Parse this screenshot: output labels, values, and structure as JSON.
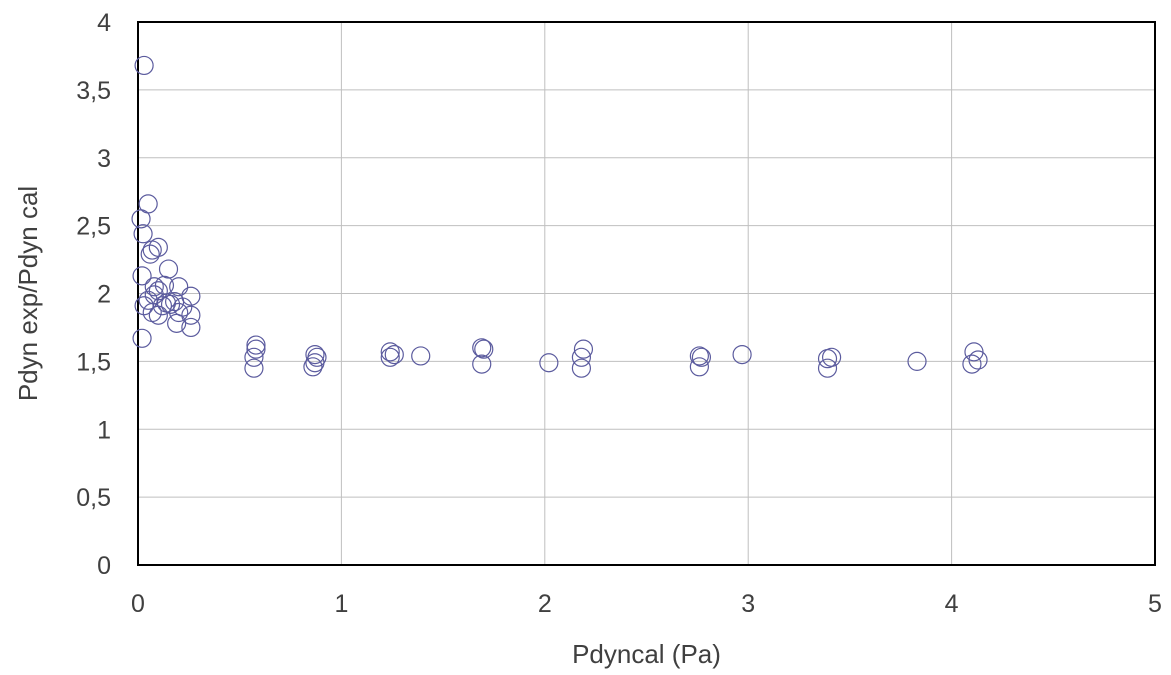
{
  "chart_data": {
    "type": "scatter",
    "title": "",
    "xlabel": "Pdyncal (Pa)",
    "ylabel": "Pdyn exp/Pdyn cal",
    "xlim": [
      0,
      5
    ],
    "ylim": [
      0,
      4
    ],
    "x_ticks": [
      0,
      1,
      2,
      3,
      4,
      5
    ],
    "x_tick_labels": [
      "0",
      "1",
      "2",
      "3",
      "4",
      "5"
    ],
    "y_ticks": [
      0,
      0.5,
      1,
      1.5,
      2,
      2.5,
      3,
      3.5,
      4
    ],
    "y_tick_labels": [
      "0",
      "0,5",
      "1",
      "1,5",
      "2",
      "2,5",
      "3",
      "3,5",
      "4"
    ],
    "grid": true,
    "marker": "open-circle",
    "marker_color": "#5b5b9e",
    "series": [
      {
        "x": [
          0.03,
          0.015,
          0.025,
          0.05,
          0.02,
          0.06,
          0.1,
          0.07,
          0.08,
          0.15,
          0.13,
          0.05,
          0.07,
          0.08,
          0.1,
          0.12,
          0.16,
          0.18,
          0.2,
          0.22,
          0.26,
          0.03,
          0.1,
          0.14,
          0.19,
          0.26,
          0.26,
          0.2,
          0.02,
          0.58,
          0.58,
          0.57,
          0.57,
          0.87,
          0.88,
          0.87,
          0.86,
          1.24,
          1.26,
          1.24,
          1.39,
          1.69,
          1.7,
          1.69,
          2.02,
          2.19,
          2.18,
          2.18,
          2.76,
          2.77,
          2.76,
          2.97,
          3.39,
          3.41,
          3.39,
          3.83,
          4.11,
          4.13,
          4.1
        ],
        "y": [
          3.68,
          2.55,
          2.44,
          2.66,
          2.13,
          2.29,
          2.34,
          2.32,
          2.05,
          2.18,
          2.06,
          1.95,
          1.86,
          1.99,
          2.02,
          1.91,
          1.92,
          1.94,
          2.05,
          1.9,
          1.98,
          1.91,
          1.84,
          1.93,
          1.78,
          1.84,
          1.75,
          1.86,
          1.67,
          1.62,
          1.59,
          1.53,
          1.45,
          1.55,
          1.53,
          1.49,
          1.46,
          1.57,
          1.55,
          1.53,
          1.54,
          1.6,
          1.59,
          1.48,
          1.49,
          1.59,
          1.53,
          1.45,
          1.54,
          1.53,
          1.46,
          1.55,
          1.52,
          1.53,
          1.45,
          1.5,
          1.57,
          1.51,
          1.48
        ]
      }
    ]
  }
}
